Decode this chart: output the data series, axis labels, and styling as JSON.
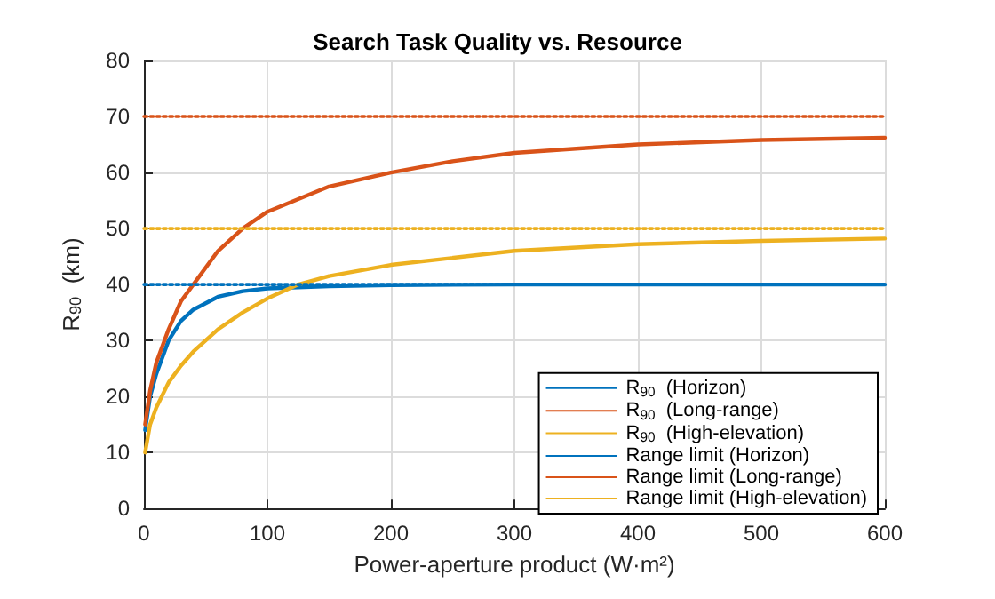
{
  "chart_data": {
    "type": "line",
    "title": "Search Task Quality vs. Resource",
    "xlabel": "Power-aperture product (W·m²)",
    "ylabel": "R$_{90}$  (km)",
    "xlim": [
      0,
      600
    ],
    "xticks": [
      0,
      100,
      200,
      300,
      400,
      500,
      600
    ],
    "ylim": [
      0,
      80
    ],
    "yticks": [
      0,
      10,
      20,
      30,
      40,
      50,
      60,
      70,
      80
    ],
    "grid": true,
    "legend": "bottom right",
    "marker": "none",
    "series": [
      {
        "name": "R$_{90}$  (Horizon)",
        "color": "#0072bd",
        "line_style": "solid",
        "x": [
          1,
          5,
          10,
          20,
          30,
          40,
          60,
          80,
          100,
          150,
          200,
          300,
          400,
          500,
          600
        ],
        "values": [
          14,
          20,
          24,
          30,
          33.5,
          35.5,
          37.8,
          38.8,
          39.3,
          39.7,
          39.9,
          40,
          40,
          40,
          40
        ]
      },
      {
        "name": "R$_{90}$  (Long-range)",
        "color": "#d95319",
        "line_style": "solid",
        "x": [
          1,
          5,
          10,
          20,
          30,
          40,
          60,
          80,
          100,
          150,
          200,
          250,
          300,
          400,
          500,
          600
        ],
        "values": [
          15,
          21,
          26,
          32,
          37,
          40,
          46,
          50,
          53,
          57.5,
          60,
          62,
          63.5,
          65,
          65.8,
          66.2
        ]
      },
      {
        "name": "R$_{90}$  (High-elevation)",
        "color": "#edb120",
        "line_style": "solid",
        "x": [
          1,
          5,
          10,
          20,
          30,
          40,
          60,
          80,
          100,
          125,
          150,
          200,
          300,
          400,
          500,
          600
        ],
        "values": [
          10,
          15,
          18,
          22.5,
          25.5,
          28,
          32,
          35,
          37.5,
          40,
          41.5,
          43.5,
          46,
          47.2,
          47.8,
          48.2
        ]
      },
      {
        "name": "Range limit (Horizon)",
        "color": "#0072bd",
        "line_style": "dotted",
        "x": [
          0,
          600
        ],
        "values": [
          40,
          40
        ]
      },
      {
        "name": "Range limit (Long-range)",
        "color": "#d95319",
        "line_style": "dotted",
        "x": [
          0,
          600
        ],
        "values": [
          70,
          70
        ]
      },
      {
        "name": "Range limit (High-elevation)",
        "color": "#edb120",
        "line_style": "dotted",
        "x": [
          0,
          600
        ],
        "values": [
          50,
          50
        ]
      }
    ]
  }
}
